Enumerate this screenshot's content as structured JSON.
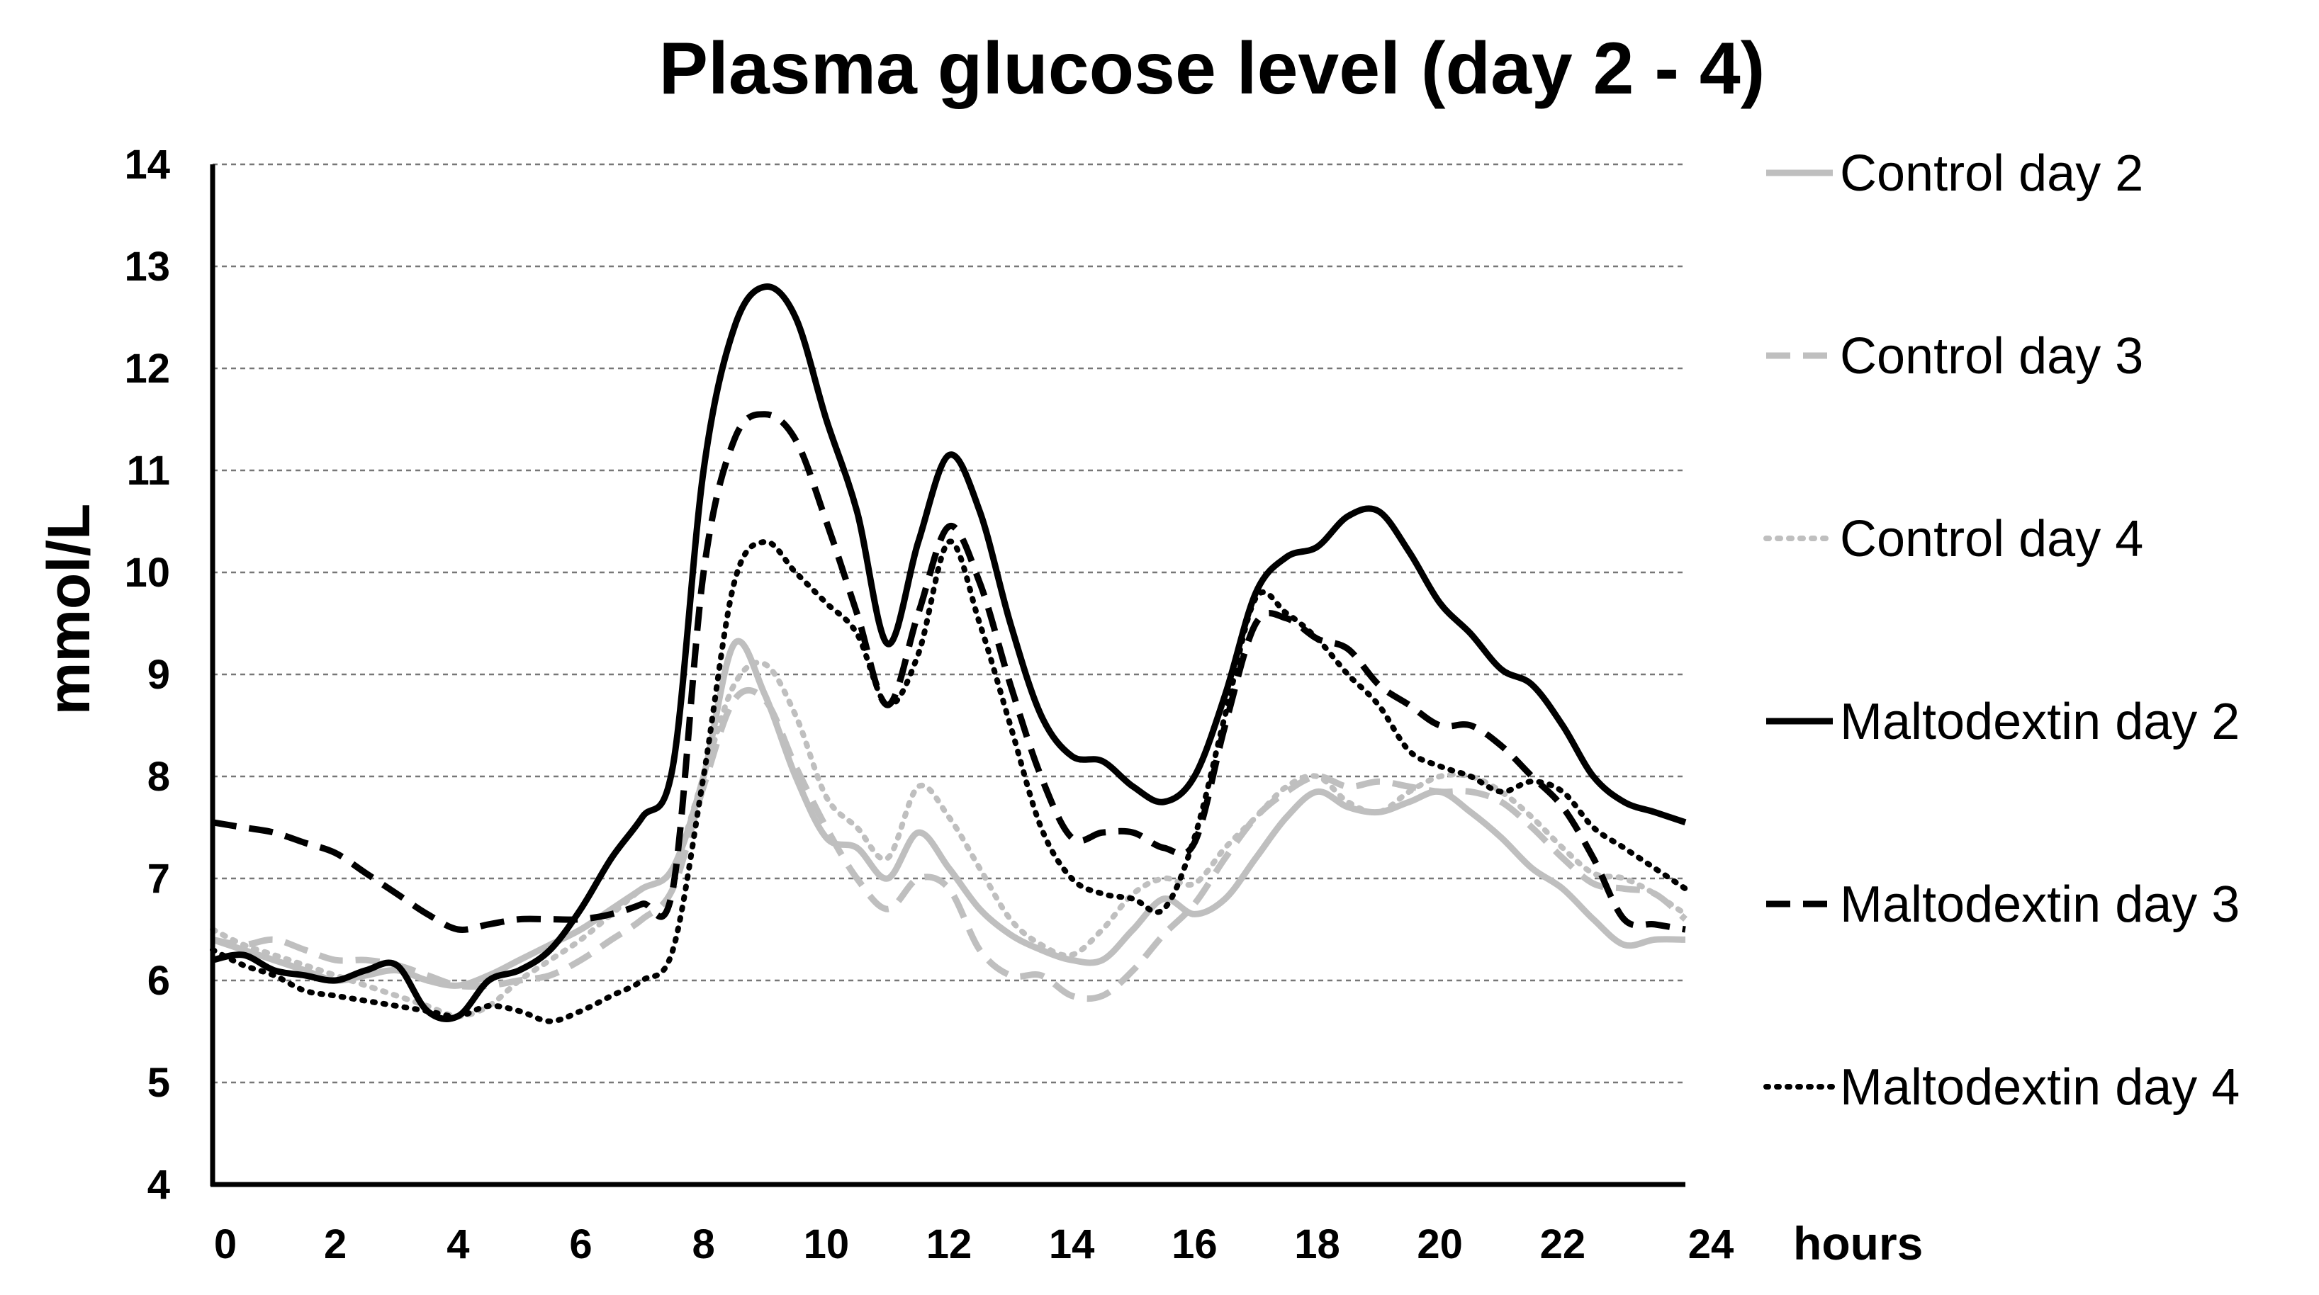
{
  "chart_data": {
    "type": "line",
    "title": "Plasma glucose level (day 2 - 4)",
    "xlabel": "hours",
    "ylabel": "mmol/L",
    "xlim": [
      0,
      24
    ],
    "ylim": [
      4,
      14
    ],
    "xticks": [
      0,
      2,
      4,
      6,
      8,
      10,
      12,
      14,
      16,
      18,
      20,
      22,
      24
    ],
    "yticks": [
      4,
      5,
      6,
      7,
      8,
      9,
      10,
      11,
      12,
      13,
      14
    ],
    "grid": "horizontal-dashed",
    "legend_position": "right",
    "series": [
      {
        "name": "Control day 2",
        "color": "#bfbfbf",
        "dash": "solid",
        "x": [
          0,
          0.5,
          1,
          1.5,
          2,
          2.5,
          3,
          3.5,
          4,
          4.5,
          5,
          5.5,
          6,
          6.5,
          7,
          7.5,
          8,
          8.5,
          9,
          9.5,
          10,
          10.5,
          11,
          11.5,
          12,
          12.5,
          13,
          13.5,
          14,
          14.5,
          15,
          15.5,
          16,
          16.5,
          17,
          17.5,
          18,
          18.5,
          19,
          19.5,
          20,
          20.5,
          21,
          21.5,
          22,
          22.5,
          23,
          23.5,
          24
        ],
        "y": [
          6.4,
          6.3,
          6.2,
          6.1,
          6.0,
          6.05,
          6.1,
          6.0,
          5.95,
          6.05,
          6.2,
          6.35,
          6.5,
          6.7,
          6.9,
          7.1,
          8.0,
          9.3,
          8.8,
          8.0,
          7.4,
          7.3,
          7.0,
          7.45,
          7.1,
          6.7,
          6.45,
          6.3,
          6.2,
          6.2,
          6.5,
          6.8,
          6.65,
          6.8,
          7.2,
          7.6,
          7.85,
          7.7,
          7.65,
          7.75,
          7.85,
          7.65,
          7.4,
          7.1,
          6.9,
          6.6,
          6.35,
          6.4,
          6.4
        ]
      },
      {
        "name": "Control day 3",
        "color": "#bfbfbf",
        "dash": "dashed",
        "x": [
          0,
          0.5,
          1,
          1.5,
          2,
          2.5,
          3,
          3.5,
          4,
          4.5,
          5,
          5.5,
          6,
          6.5,
          7,
          7.5,
          8,
          8.5,
          9,
          9.5,
          10,
          10.5,
          11,
          11.5,
          12,
          12.5,
          13,
          13.5,
          14,
          14.5,
          15,
          15.5,
          16,
          16.5,
          17,
          17.5,
          18,
          18.5,
          19,
          19.5,
          20,
          20.5,
          21,
          21.5,
          22,
          22.5,
          23,
          23.5,
          24
        ],
        "y": [
          6.4,
          6.35,
          6.4,
          6.3,
          6.2,
          6.2,
          6.15,
          6.05,
          5.95,
          5.95,
          6.0,
          6.05,
          6.2,
          6.4,
          6.6,
          6.9,
          7.9,
          8.75,
          8.75,
          8.1,
          7.5,
          7.0,
          6.7,
          7.0,
          6.9,
          6.3,
          6.05,
          6.05,
          5.85,
          5.85,
          6.1,
          6.45,
          6.75,
          7.2,
          7.6,
          7.85,
          8.0,
          7.9,
          7.95,
          7.9,
          7.85,
          7.85,
          7.75,
          7.5,
          7.2,
          6.95,
          6.9,
          6.85,
          6.6
        ]
      },
      {
        "name": "Control day 4",
        "color": "#bfbfbf",
        "dash": "dotted",
        "x": [
          0,
          0.5,
          1,
          1.5,
          2,
          2.5,
          3,
          3.5,
          4,
          4.5,
          5,
          5.5,
          6,
          6.5,
          7,
          7.5,
          8,
          8.5,
          9,
          9.5,
          10,
          10.5,
          11,
          11.5,
          12,
          12.5,
          13,
          13.5,
          14,
          14.5,
          15,
          15.5,
          16,
          16.5,
          17,
          17.5,
          18,
          18.5,
          19,
          19.5,
          20,
          20.5,
          21,
          21.5,
          22,
          22.5,
          23,
          23.5,
          24
        ],
        "y": [
          6.5,
          6.35,
          6.25,
          6.15,
          6.05,
          5.95,
          5.85,
          5.75,
          5.65,
          5.75,
          6.0,
          6.2,
          6.4,
          6.65,
          6.9,
          7.1,
          8.0,
          8.9,
          9.1,
          8.6,
          7.8,
          7.5,
          7.2,
          7.9,
          7.6,
          7.1,
          6.6,
          6.35,
          6.25,
          6.5,
          6.85,
          7.0,
          6.95,
          7.3,
          7.6,
          7.9,
          8.0,
          7.75,
          7.65,
          7.85,
          8.0,
          8.0,
          7.85,
          7.6,
          7.3,
          7.05,
          7.0,
          6.85,
          6.65
        ]
      },
      {
        "name": "Maltodextin day 2",
        "color": "#000000",
        "dash": "solid",
        "x": [
          0,
          0.5,
          1,
          1.5,
          2,
          2.5,
          3,
          3.5,
          4,
          4.5,
          5,
          5.5,
          6,
          6.5,
          7,
          7.5,
          8,
          8.5,
          9,
          9.5,
          10,
          10.5,
          11,
          11.5,
          12,
          12.5,
          13,
          13.5,
          14,
          14.5,
          15,
          15.5,
          16,
          16.5,
          17,
          17.5,
          18,
          18.5,
          19,
          19.5,
          20,
          20.5,
          21,
          21.5,
          22,
          22.5,
          23,
          23.5,
          24
        ],
        "y": [
          6.2,
          6.25,
          6.1,
          6.05,
          6.0,
          6.1,
          6.15,
          5.7,
          5.65,
          6.0,
          6.1,
          6.3,
          6.7,
          7.2,
          7.6,
          8.1,
          11.0,
          12.4,
          12.8,
          12.5,
          11.5,
          10.6,
          9.3,
          10.3,
          11.15,
          10.6,
          9.5,
          8.6,
          8.2,
          8.15,
          7.9,
          7.75,
          8.0,
          8.8,
          9.8,
          10.15,
          10.25,
          10.55,
          10.6,
          10.2,
          9.7,
          9.4,
          9.05,
          8.9,
          8.5,
          8.0,
          7.75,
          7.65,
          7.55
        ]
      },
      {
        "name": "Maltodextin day 3",
        "color": "#000000",
        "dash": "dashed",
        "x": [
          0,
          0.5,
          1,
          1.5,
          2,
          2.5,
          3,
          3.5,
          4,
          4.5,
          5,
          5.5,
          6,
          6.5,
          7,
          7.5,
          8,
          8.5,
          9,
          9.5,
          10,
          10.5,
          11,
          11.5,
          12,
          12.5,
          13,
          13.5,
          14,
          14.5,
          15,
          15.5,
          16,
          16.5,
          17,
          17.5,
          18,
          18.5,
          19,
          19.5,
          20,
          20.5,
          21,
          21.5,
          22,
          22.5,
          23,
          23.5,
          24
        ],
        "y": [
          7.55,
          7.5,
          7.45,
          7.35,
          7.25,
          7.05,
          6.85,
          6.65,
          6.5,
          6.55,
          6.6,
          6.6,
          6.6,
          6.65,
          6.75,
          6.9,
          10.0,
          11.3,
          11.55,
          11.3,
          10.5,
          9.6,
          8.7,
          9.6,
          10.45,
          9.9,
          8.9,
          8.0,
          7.4,
          7.45,
          7.45,
          7.3,
          7.35,
          8.5,
          9.5,
          9.55,
          9.35,
          9.25,
          8.9,
          8.7,
          8.5,
          8.5,
          8.3,
          8.0,
          7.7,
          7.2,
          6.6,
          6.55,
          6.5
        ]
      },
      {
        "name": "Maltodextin day 4",
        "color": "#000000",
        "dash": "dotted",
        "x": [
          0,
          0.5,
          1,
          1.5,
          2,
          2.5,
          3,
          3.5,
          4,
          4.5,
          5,
          5.5,
          6,
          6.5,
          7,
          7.5,
          8,
          8.5,
          9,
          9.5,
          10,
          10.5,
          11,
          11.5,
          12,
          12.5,
          13,
          13.5,
          14,
          14.5,
          15,
          15.5,
          16,
          16.5,
          17,
          17.5,
          18,
          18.5,
          19,
          19.5,
          20,
          20.5,
          21,
          21.5,
          22,
          22.5,
          23,
          23.5,
          24
        ],
        "y": [
          6.3,
          6.15,
          6.05,
          5.9,
          5.85,
          5.8,
          5.75,
          5.7,
          5.65,
          5.75,
          5.7,
          5.6,
          5.7,
          5.85,
          6.0,
          6.3,
          8.0,
          9.9,
          10.3,
          10.0,
          9.7,
          9.4,
          8.7,
          9.2,
          10.3,
          9.5,
          8.5,
          7.5,
          7.0,
          6.85,
          6.8,
          6.7,
          7.4,
          8.6,
          9.75,
          9.6,
          9.35,
          9.0,
          8.7,
          8.25,
          8.1,
          8.0,
          7.85,
          7.95,
          7.85,
          7.5,
          7.3,
          7.1,
          6.9
        ]
      }
    ]
  }
}
